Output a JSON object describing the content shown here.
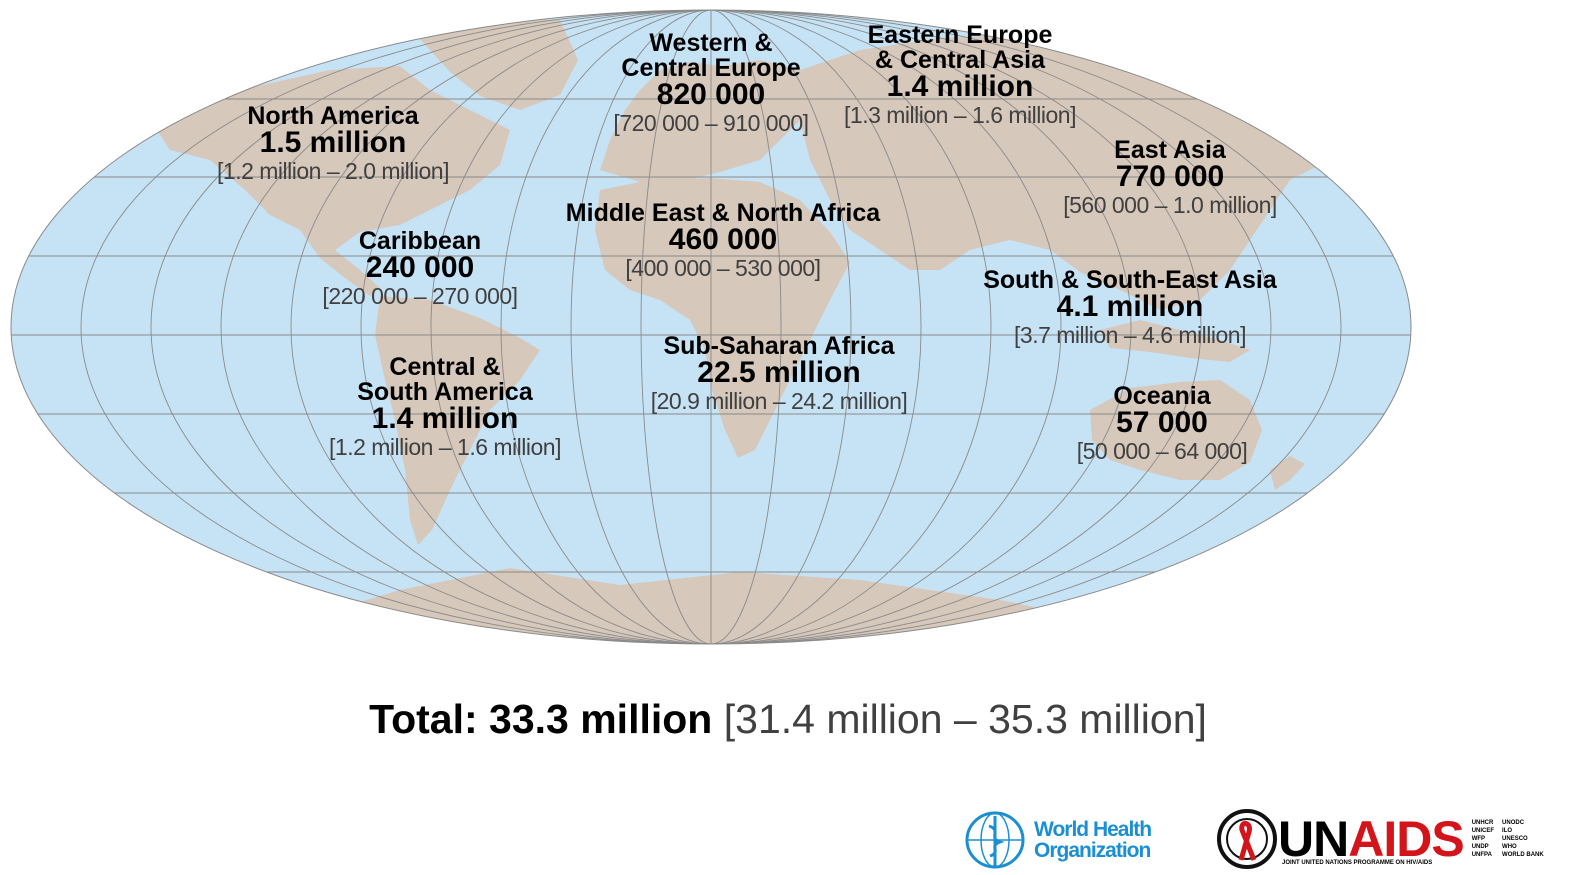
{
  "regions": [
    {
      "name": "North America",
      "value": "1.5 million",
      "range": "[1.2 million – 2.0 million]"
    },
    {
      "name": "Caribbean",
      "value": "240 000",
      "range": "[220 000 – 270 000]"
    },
    {
      "name": "Central &\nSouth America",
      "value": "1.4 million",
      "range": "[1.2 million – 1.6 million]"
    },
    {
      "name": "Western &\nCentral Europe",
      "value": "820 000",
      "range": "[720 000 – 910 000]"
    },
    {
      "name": "Middle East & North Africa",
      "value": "460 000",
      "range": "[400 000 – 530 000]"
    },
    {
      "name": "Sub-Saharan Africa",
      "value": "22.5 million",
      "range": "[20.9 million – 24.2 million]"
    },
    {
      "name": "Eastern Europe\n& Central Asia",
      "value": "1.4 million",
      "range": "[1.3 million – 1.6 million]"
    },
    {
      "name": "East Asia",
      "value": "770 000",
      "range": "[560 000 – 1.0 million]"
    },
    {
      "name": "South & South-East Asia",
      "value": "4.1 million",
      "range": "[3.7 million – 4.6 million]"
    },
    {
      "name": "Oceania",
      "value": "57 000",
      "range": "[50 000 – 64 000]"
    }
  ],
  "total": {
    "label": "Total: 33.3 million",
    "range": "[31.4 million – 35.3 million]"
  },
  "logos": {
    "who": {
      "line1": "World Health",
      "line2": "Organization"
    },
    "unaids": {
      "word_un": "UN",
      "word_aids": "AIDS",
      "subtitle": "JOINT UNITED NATIONS PROGRAMME ON HIV/AIDS",
      "cosponsors_a": [
        "UNHCR",
        "UNICEF",
        "WFP",
        "UNDP",
        "UNFPA"
      ],
      "cosponsors_b": [
        "UNODC",
        "ILO",
        "UNESCO",
        "WHO",
        "WORLD BANK"
      ]
    }
  },
  "colors": {
    "ocean": "#c6e3f6",
    "land": "#d6c8bb",
    "grid": "#8a8a8a",
    "who_blue": "#1b8fd4",
    "ribbon_red": "#d4141b"
  }
}
